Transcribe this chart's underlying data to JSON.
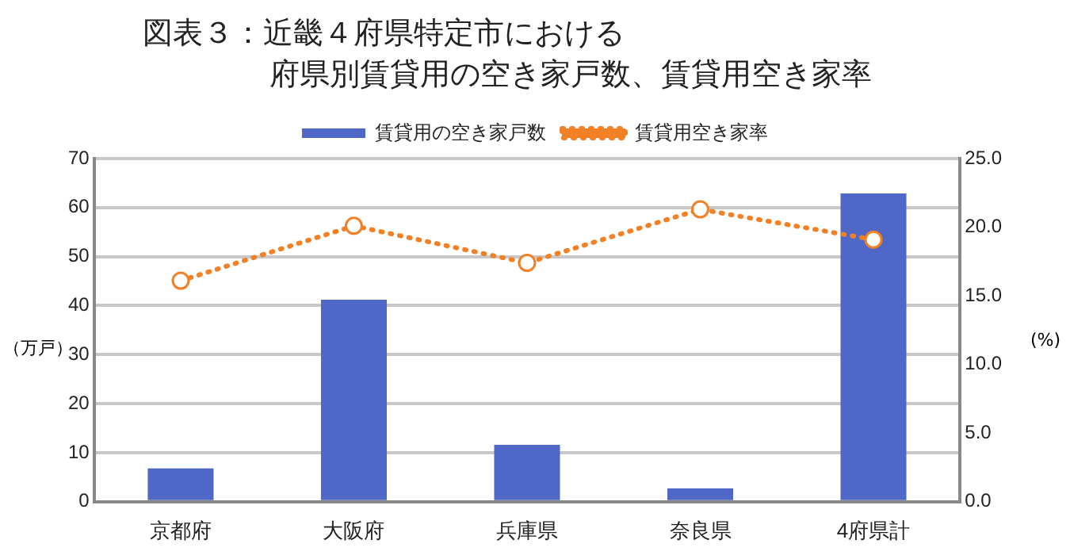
{
  "chart_data": {
    "type": "bar",
    "title": "図表３：近畿４府県特定市における府県別賃貸用の空き家戸数、賃貸用空き家率",
    "categories": [
      "京都府",
      "大阪府",
      "兵庫県",
      "奈良県",
      "4府県計"
    ],
    "series": [
      {
        "name": "賃貸用の空き家戸数",
        "color": "#4f67c6",
        "values": [
          6.8,
          41.2,
          11.6,
          2.7,
          62.9
        ]
      },
      {
        "name": "賃貸用空き家率",
        "type": "line",
        "axis": "y2",
        "color": "#f28126",
        "marker": "circle",
        "line_style": "dotted",
        "values": [
          16.1,
          20.1,
          17.4,
          21.3,
          19.1
        ]
      }
    ],
    "ylabel": "（万戸）",
    "y2label": "(%)",
    "ylim": [
      0,
      70
    ],
    "yticks": [
      0,
      10,
      20,
      30,
      40,
      50,
      60,
      70
    ],
    "y2lim": [
      0,
      25
    ],
    "y2ticks": [
      {
        "value": 0,
        "label": "0.0"
      },
      {
        "value": 5,
        "label": "5.0"
      },
      {
        "value": 10,
        "label": "10.0"
      },
      {
        "value": 15,
        "label": "15.0"
      },
      {
        "value": 20,
        "label": "20.0"
      },
      {
        "value": 25,
        "label": "25.0"
      }
    ],
    "grid": "y",
    "legend": "top"
  }
}
